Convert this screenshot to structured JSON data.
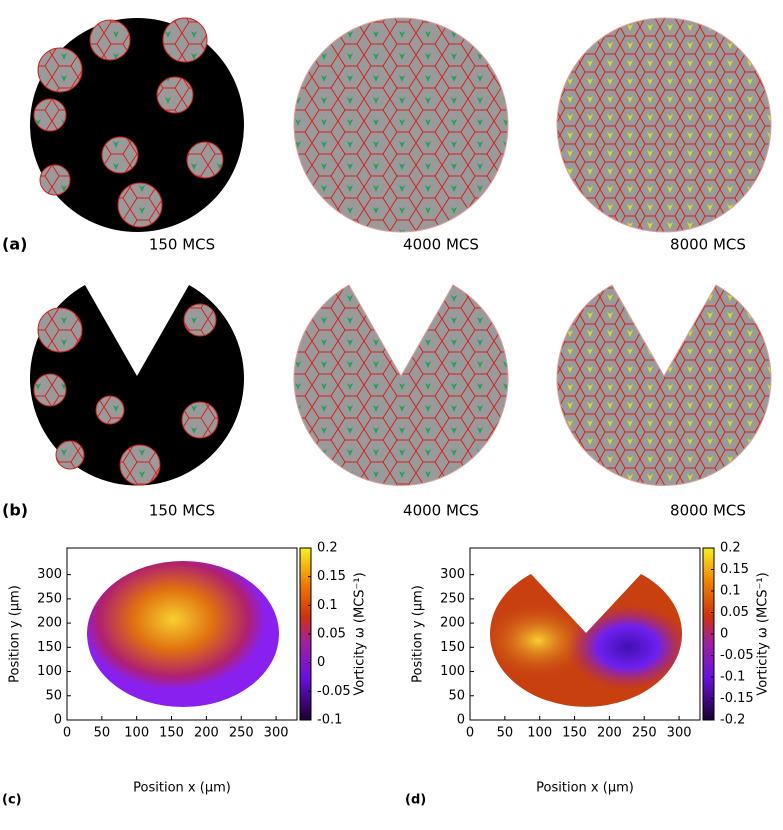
{
  "panels": {
    "a": {
      "label": "(a)",
      "times": [
        "150 MCS",
        "4000 MCS",
        "8000 MCS"
      ]
    },
    "b": {
      "label": "(b)",
      "times": [
        "150 MCS",
        "4000 MCS",
        "8000 MCS"
      ]
    }
  },
  "chart_data": [
    {
      "type": "heatmap",
      "panel_label": "(c)",
      "x_label": "Position x (μm)",
      "y_label": "Position y (μm)",
      "xlim": [
        0,
        330
      ],
      "ylim": [
        0,
        355
      ],
      "xticks": [
        0,
        50,
        100,
        150,
        200,
        250,
        300
      ],
      "yticks": [
        0,
        50,
        100,
        150,
        200,
        250,
        300
      ],
      "colorbar": {
        "label": "Vorticity ω (MCS⁻¹)",
        "lim": [
          -0.1,
          0.2
        ],
        "ticks": [
          -0.1,
          -0.05,
          0,
          0.05,
          0.1,
          0.15,
          0.2
        ]
      }
    },
    {
      "type": "heatmap",
      "panel_label": "(d)",
      "x_label": "Position x (μm)",
      "y_label": "Position y (μm)",
      "xlim": [
        0,
        330
      ],
      "ylim": [
        0,
        355
      ],
      "xticks": [
        0,
        50,
        100,
        150,
        200,
        250,
        300
      ],
      "yticks": [
        0,
        50,
        100,
        150,
        200,
        250,
        300
      ],
      "colorbar": {
        "label": "Vorticity ω (MCS⁻¹)",
        "lim": [
          -0.2,
          0.2
        ],
        "ticks": [
          -0.2,
          -0.15,
          -0.1,
          -0.05,
          0,
          0.05,
          0.1,
          0.15,
          0.2
        ]
      }
    }
  ]
}
